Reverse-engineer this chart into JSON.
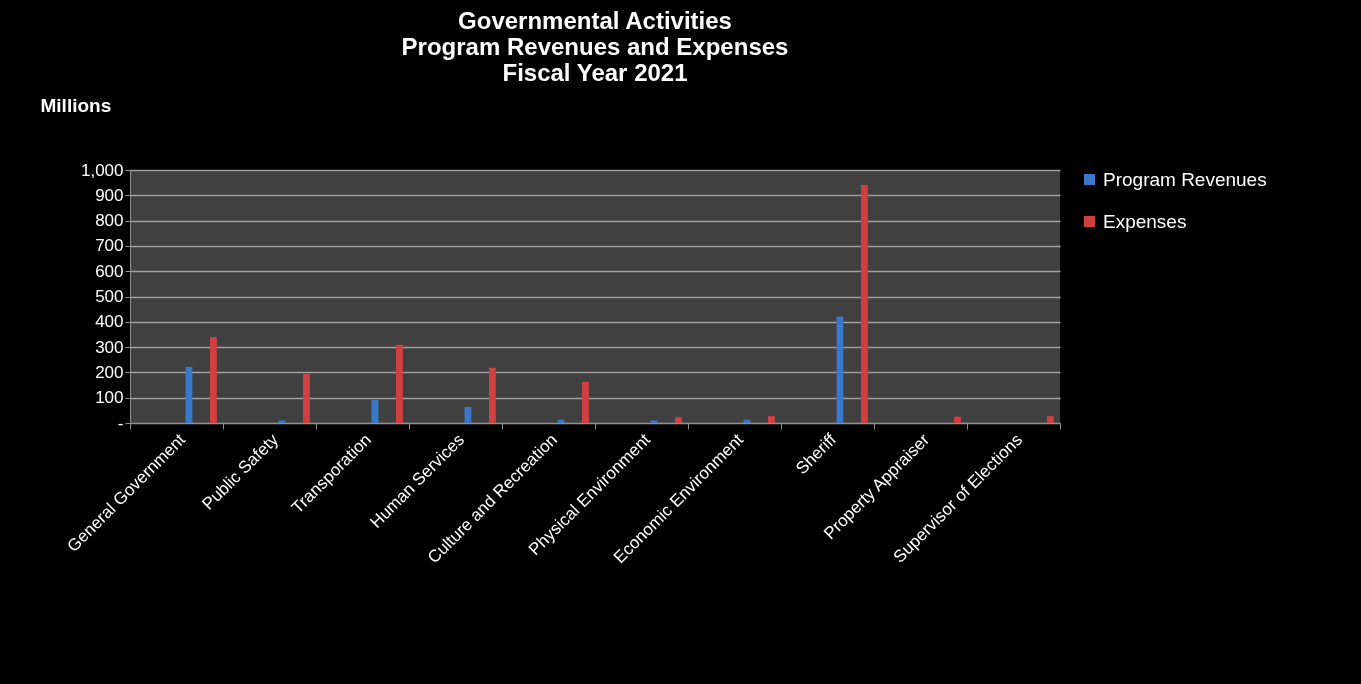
{
  "chart_data": {
    "type": "bar",
    "title": [
      "Governmental Activities",
      "Program Revenues and Expenses",
      "Fiscal Year 2021"
    ],
    "ylabel": "Millions",
    "categories": [
      "General Government",
      "Public Safety",
      "Transporation",
      "Human Services",
      "Culture and Recreation",
      "Physical Environment",
      "Economic Environment",
      "Sheriff",
      "Property Appraiser",
      "Supervisor of Elections"
    ],
    "series": [
      {
        "name": "Program Revenues",
        "color": "#3a78c8",
        "values": [
          222,
          10,
          91,
          63,
          13,
          10,
          13,
          421,
          0,
          0
        ]
      },
      {
        "name": "Expenses",
        "color": "#d04040",
        "values": [
          340,
          194,
          309,
          218,
          163,
          23,
          27,
          941,
          25,
          27
        ]
      }
    ],
    "ylim": [
      0,
      1000
    ],
    "yticks": [
      {
        "value": 0,
        "label": "-"
      },
      100,
      200,
      300,
      400,
      500,
      600,
      700,
      800,
      900,
      {
        "value": 1000,
        "label": "1,000"
      }
    ],
    "grid": "y",
    "legend": "right"
  }
}
